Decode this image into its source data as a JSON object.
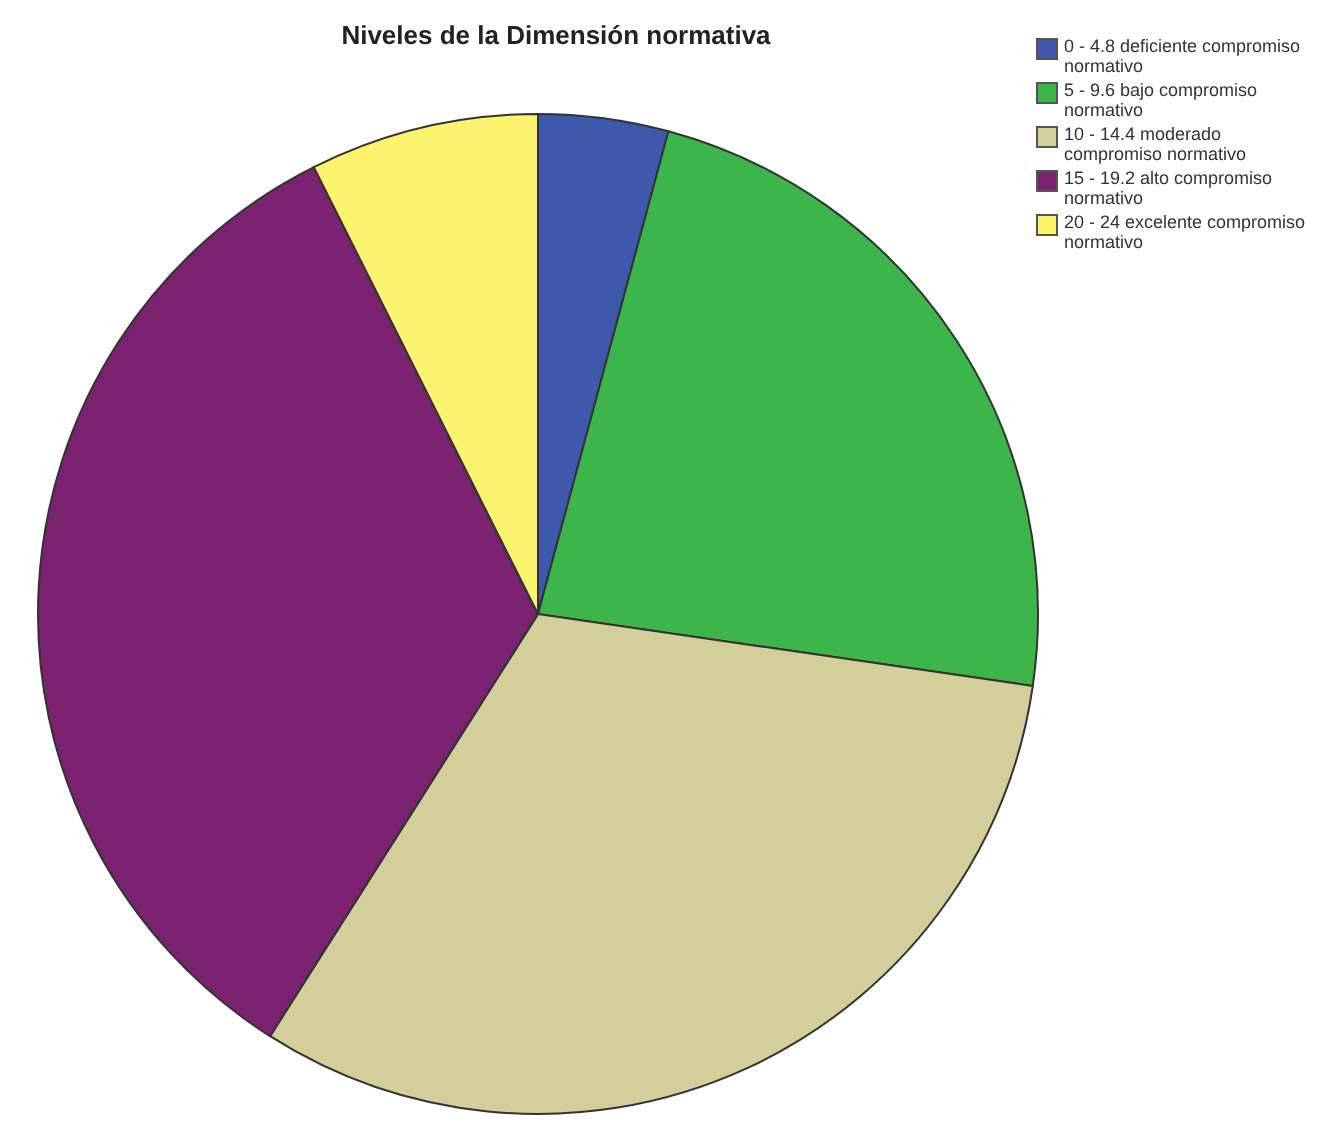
{
  "chart_data": {
    "type": "pie",
    "title": "Niveles de la Dimensión normativa",
    "categories": [
      "0 - 4.8 deficiente compromiso normativo",
      "5 - 9.6 bajo compromiso normativo",
      "10 - 14.4 moderado compromiso normativo",
      "15 - 19.2 alto compromiso normativo",
      "20 - 24 excelente compromiso normativo"
    ],
    "values": [
      4.2,
      23.1,
      31.7,
      33.6,
      7.4
    ],
    "colors": [
      "#3e58ac",
      "#3cb54a",
      "#d3ce9a",
      "#7a2270",
      "#fbf46c"
    ],
    "legend": "top right"
  }
}
